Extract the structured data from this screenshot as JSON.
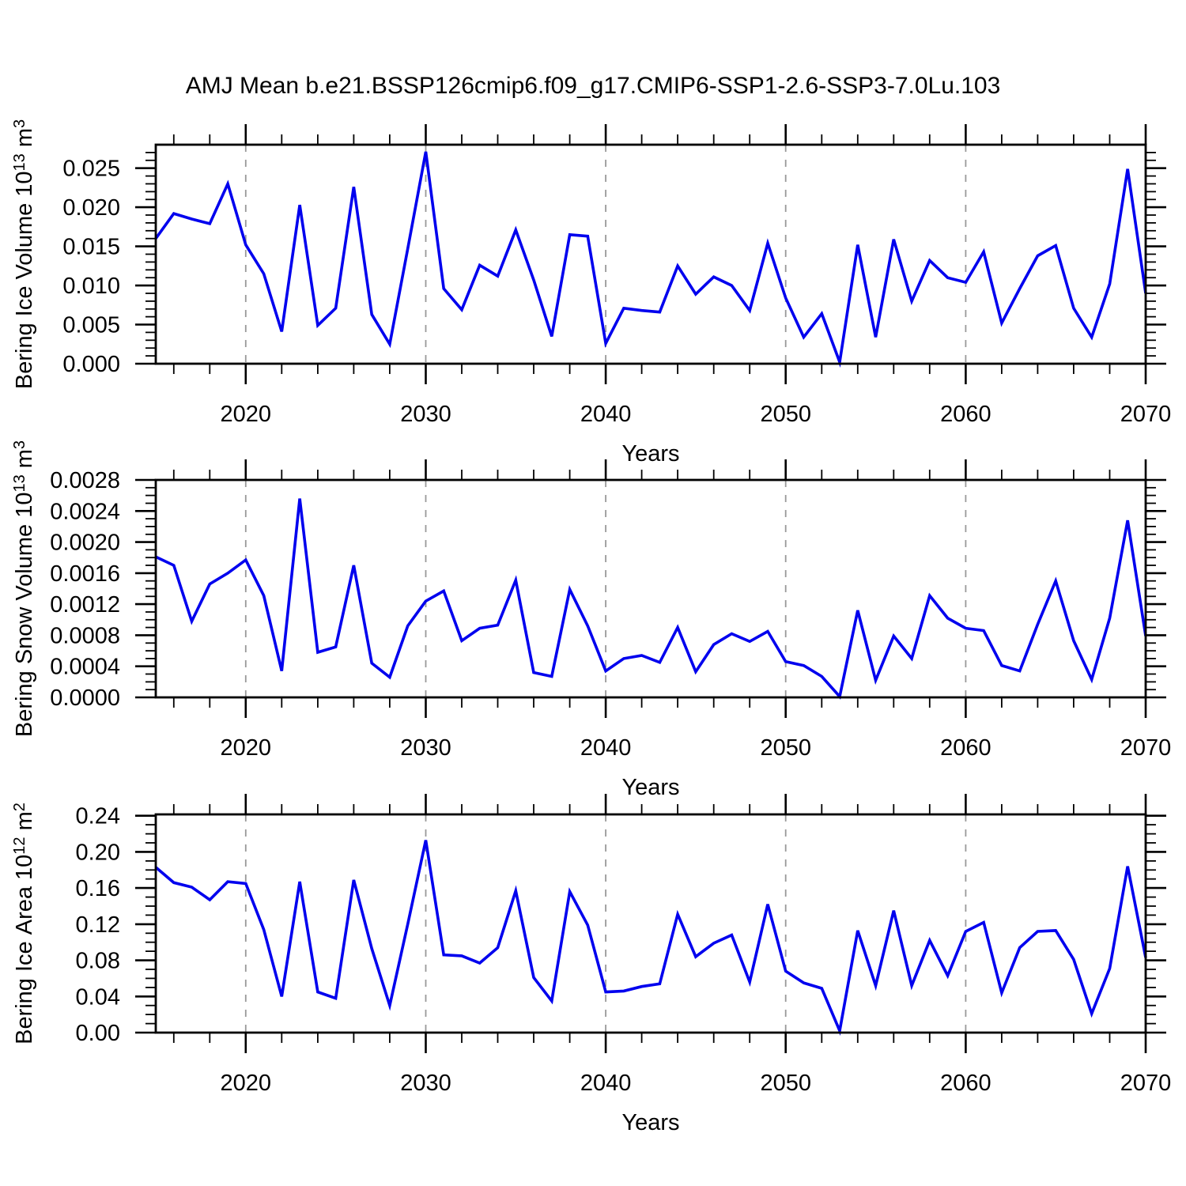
{
  "title": "AMJ Mean b.e21.BSSP126cmip6.f09_g17.CMIP6-SSP1-2.6-SSP3-7.0Lu.103",
  "colors": {
    "line": "#0000ee",
    "grid": "#999999",
    "axis": "#000000",
    "background": "#ffffff",
    "text": "#000000"
  },
  "years": [
    2015,
    2016,
    2017,
    2018,
    2019,
    2020,
    2021,
    2022,
    2023,
    2024,
    2025,
    2026,
    2027,
    2028,
    2029,
    2030,
    2031,
    2032,
    2033,
    2034,
    2035,
    2036,
    2037,
    2038,
    2039,
    2040,
    2041,
    2042,
    2043,
    2044,
    2045,
    2046,
    2047,
    2048,
    2049,
    2050,
    2051,
    2052,
    2053,
    2054,
    2055,
    2056,
    2057,
    2058,
    2059,
    2060,
    2061,
    2062,
    2063,
    2064,
    2065,
    2066,
    2067,
    2068,
    2069,
    2070
  ],
  "chart_data": [
    {
      "type": "line",
      "name": "bering-ice-volume",
      "ylabel_parts": [
        "Bering Ice Volume 10",
        {
          "sup": "13"
        },
        " m",
        {
          "sup": "3"
        }
      ],
      "xlabel": "Years",
      "xlim": [
        2015,
        2070
      ],
      "ylim": [
        0,
        0.028
      ],
      "xtick_vals": [
        2020,
        2030,
        2040,
        2050,
        2060,
        2070
      ],
      "xtick_labels": [
        "2020",
        "2030",
        "2040",
        "2050",
        "2060",
        "2070"
      ],
      "xminor_step": 2,
      "grid_x": [
        2020,
        2030,
        2040,
        2050,
        2060
      ],
      "ytick_vals": [
        0.0,
        0.005,
        0.01,
        0.015,
        0.02,
        0.025
      ],
      "ytick_labels": [
        "0.000",
        "0.005",
        "0.010",
        "0.015",
        "0.020",
        "0.025"
      ],
      "yminor_step": 0.001,
      "values": [
        0.016,
        0.0192,
        0.0185,
        0.0179,
        0.023,
        0.0152,
        0.0115,
        0.0041,
        0.0203,
        0.0049,
        0.0071,
        0.0226,
        0.0063,
        0.0025,
        0.0147,
        0.0271,
        0.0096,
        0.0069,
        0.0126,
        0.0112,
        0.0171,
        0.0107,
        0.0035,
        0.0165,
        0.0163,
        0.0026,
        0.0071,
        0.0068,
        0.0066,
        0.0125,
        0.0089,
        0.0111,
        0.01,
        0.0068,
        0.0154,
        0.0084,
        0.0034,
        0.0064,
        0.0002,
        0.0152,
        0.0034,
        0.0159,
        0.008,
        0.0132,
        0.011,
        0.0104,
        0.0143,
        0.0052,
        0.0096,
        0.0138,
        0.0151,
        0.0071,
        0.0034,
        0.0102,
        0.0249,
        0.009
      ]
    },
    {
      "type": "line",
      "name": "bering-snow-volume",
      "ylabel_parts": [
        "Bering Snow Volume 10",
        {
          "sup": "13"
        },
        " m",
        {
          "sup": "3"
        }
      ],
      "xlabel": "Years",
      "xlim": [
        2015,
        2070
      ],
      "ylim": [
        0,
        0.0028
      ],
      "xtick_vals": [
        2020,
        2030,
        2040,
        2050,
        2060,
        2070
      ],
      "xtick_labels": [
        "2020",
        "2030",
        "2040",
        "2050",
        "2060",
        "2070"
      ],
      "xminor_step": 2,
      "grid_x": [
        2020,
        2030,
        2040,
        2050,
        2060
      ],
      "ytick_vals": [
        0.0,
        0.0004,
        0.0008,
        0.0012,
        0.0016,
        0.002,
        0.0024,
        0.0028
      ],
      "ytick_labels": [
        "0.0000",
        "0.0004",
        "0.0008",
        "0.0012",
        "0.0016",
        "0.0020",
        "0.0024",
        "0.0028"
      ],
      "yminor_step": 0.0001,
      "values": [
        0.00181,
        0.0017,
        0.00098,
        0.00146,
        0.0016,
        0.00177,
        0.00131,
        0.00034,
        0.00256,
        0.00058,
        0.00065,
        0.0017,
        0.00044,
        0.00026,
        0.00092,
        0.00124,
        0.00137,
        0.00073,
        0.00089,
        0.00093,
        0.00151,
        0.00032,
        0.00027,
        0.00139,
        0.00092,
        0.00034,
        0.0005,
        0.00054,
        0.00045,
        0.0009,
        0.00033,
        0.00068,
        0.00082,
        0.00072,
        0.00085,
        0.00046,
        0.00041,
        0.00027,
        1e-05,
        0.00112,
        0.00022,
        0.00079,
        0.0005,
        0.00131,
        0.00102,
        0.00089,
        0.00086,
        0.00041,
        0.00034,
        0.00094,
        0.0015,
        0.00073,
        0.00023,
        0.00102,
        0.00228,
        0.00079
      ]
    },
    {
      "type": "line",
      "name": "bering-ice-area",
      "ylabel_parts": [
        "Bering Ice Area 10",
        {
          "sup": "12"
        },
        " m",
        {
          "sup": "2"
        }
      ],
      "xlabel": "Years",
      "xlim": [
        2015,
        2070
      ],
      "ylim": [
        0,
        0.2415
      ],
      "xtick_vals": [
        2020,
        2030,
        2040,
        2050,
        2060,
        2070
      ],
      "xtick_labels": [
        "2020",
        "2030",
        "2040",
        "2050",
        "2060",
        "2070"
      ],
      "xminor_step": 2,
      "grid_x": [
        2020,
        2030,
        2040,
        2050,
        2060
      ],
      "ytick_vals": [
        0.0,
        0.04,
        0.08,
        0.12,
        0.16,
        0.2,
        0.24
      ],
      "ytick_labels": [
        "0.00",
        "0.04",
        "0.08",
        "0.12",
        "0.16",
        "0.20",
        "0.24"
      ],
      "yminor_step": 0.01,
      "values": [
        0.183,
        0.166,
        0.161,
        0.147,
        0.167,
        0.165,
        0.114,
        0.04,
        0.167,
        0.045,
        0.038,
        0.169,
        0.093,
        0.03,
        0.12,
        0.213,
        0.086,
        0.085,
        0.077,
        0.094,
        0.157,
        0.061,
        0.035,
        0.156,
        0.119,
        0.045,
        0.046,
        0.051,
        0.054,
        0.131,
        0.084,
        0.099,
        0.108,
        0.056,
        0.142,
        0.068,
        0.055,
        0.049,
        0.002,
        0.113,
        0.052,
        0.135,
        0.052,
        0.102,
        0.063,
        0.112,
        0.122,
        0.044,
        0.094,
        0.112,
        0.113,
        0.081,
        0.021,
        0.071,
        0.184,
        0.083
      ]
    }
  ]
}
